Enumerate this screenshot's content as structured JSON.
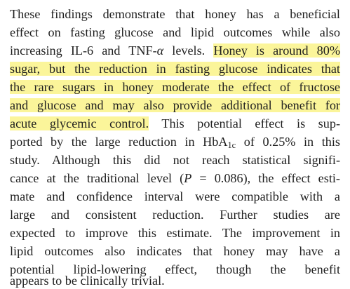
{
  "paragraph": {
    "line01": {
      "text": "These findings demonstrate that honey has a beneficial"
    },
    "line02": {
      "text": "effect on fasting glucose and lipid outcomes while also"
    },
    "line03": {
      "pre": "increasing IL-6 and TNF-",
      "alpha": "α",
      "mid": " levels. ",
      "hl": "Honey is around 80%"
    },
    "line04": {
      "hl": "sugar, but the reduction in fasting glucose indicates that"
    },
    "line05": {
      "hl": "the rare sugars in honey moderate the effect of fructose"
    },
    "line06": {
      "hl": "and glucose and may also provide additional benefit for"
    },
    "line07": {
      "hl": "acute glycemic control.",
      "post": " This potential effect is sup-"
    },
    "line08": {
      "pre": "ported by the large reduction in HbA",
      "sub": "1c",
      "post": " of 0.25% in this"
    },
    "line09": {
      "text": "study. Although this did not reach statistical signifi-"
    },
    "line10": {
      "pre": "cance at the traditional level (",
      "p": "P",
      "post": " = 0.086), the effect esti-"
    },
    "line11": {
      "text": "mate and confidence interval were compatible with a"
    },
    "line12": {
      "text": "large and consistent reduction. Further studies are"
    },
    "line13": {
      "text": "expected to improve this estimate. The improvement in"
    },
    "line14": {
      "text": "lipid outcomes also indicates that honey may have a"
    },
    "line15": {
      "text": "potential lipid-lowering effect, though the benefit"
    },
    "line16": {
      "text": "appears to be clinically trivial."
    }
  },
  "colors": {
    "text": "#1f1f1f",
    "highlight": "#fbf59a",
    "background": "#ffffff"
  }
}
